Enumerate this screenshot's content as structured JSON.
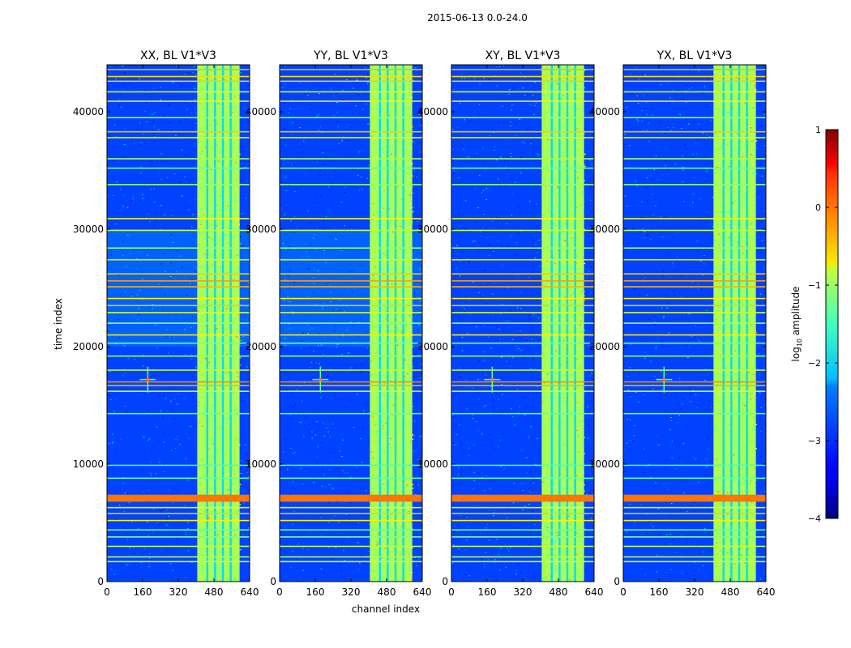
{
  "figure": {
    "suptitle": "2015-06-13 0.0-24.0",
    "xlabel": "channel index",
    "ylabel": "time index",
    "colorbar_label": "log",
    "colorbar_label_sub": "10",
    "colorbar_label_rest": " amplitude"
  },
  "chart_data": {
    "type": "heatmap",
    "panels": [
      {
        "title": "XX, BL V1*V3",
        "polarization": "XX"
      },
      {
        "title": "YY, BL V1*V3",
        "polarization": "YY"
      },
      {
        "title": "XY, BL V1*V3",
        "polarization": "XY"
      },
      {
        "title": "YX, BL V1*V3",
        "polarization": "YX"
      }
    ],
    "x_range": [
      0,
      640
    ],
    "y_range": [
      0,
      44000
    ],
    "x_ticks": [
      0,
      160,
      320,
      480,
      640
    ],
    "y_ticks": [
      0,
      10000,
      20000,
      30000,
      40000
    ],
    "colorbar_range": [
      -4,
      1
    ],
    "colorbar_ticks": [
      1,
      0,
      -1,
      -2,
      -3,
      -4
    ],
    "colormap": "jet",
    "features": {
      "bright_channel_band": [
        405,
        595
      ],
      "bright_channel_gaps": [
        450,
        485,
        520,
        555
      ],
      "full_rfi_band_time": [
        6800,
        7400
      ],
      "spike": {
        "channel": 183,
        "time": 17200
      }
    },
    "horizontal_lines": [
      {
        "time": 1700,
        "level": -1.0
      },
      {
        "time": 2100,
        "level": -1.3
      },
      {
        "time": 3000,
        "level": -1.2
      },
      {
        "time": 3800,
        "level": -1.5
      },
      {
        "time": 4400,
        "level": -1.6
      },
      {
        "time": 5200,
        "level": -0.8
      },
      {
        "time": 5800,
        "level": -0.6
      },
      {
        "time": 6300,
        "level": -0.9
      },
      {
        "time": 8800,
        "level": -1.6
      },
      {
        "time": 9900,
        "level": -1.8
      },
      {
        "time": 14300,
        "level": -1.6
      },
      {
        "time": 16200,
        "level": -1.0
      },
      {
        "time": 16700,
        "level": -0.5
      },
      {
        "time": 17000,
        "level": -0.3
      },
      {
        "time": 18000,
        "level": -1.2
      },
      {
        "time": 19200,
        "level": -1.4
      },
      {
        "time": 20300,
        "level": -1.5
      },
      {
        "time": 21000,
        "level": -0.8
      },
      {
        "time": 22000,
        "level": -1.3
      },
      {
        "time": 22900,
        "level": -1.1
      },
      {
        "time": 23500,
        "level": -0.6
      },
      {
        "time": 24100,
        "level": -0.8
      },
      {
        "time": 25100,
        "level": -0.5
      },
      {
        "time": 25600,
        "level": -0.4
      },
      {
        "time": 26200,
        "level": -0.6
      },
      {
        "time": 27400,
        "level": -0.8
      },
      {
        "time": 28400,
        "level": -1.4
      },
      {
        "time": 29900,
        "level": -1.2
      },
      {
        "time": 30900,
        "level": -1.0
      },
      {
        "time": 33800,
        "level": -1.4
      },
      {
        "time": 35200,
        "level": -1.6
      },
      {
        "time": 36000,
        "level": -1.3
      },
      {
        "time": 37800,
        "level": -0.9
      },
      {
        "time": 38300,
        "level": -0.6
      },
      {
        "time": 39500,
        "level": -1.3
      },
      {
        "time": 40900,
        "level": -0.8
      },
      {
        "time": 41700,
        "level": -1.0
      },
      {
        "time": 42600,
        "level": -0.6
      },
      {
        "time": 43000,
        "level": -0.7
      },
      {
        "time": 43600,
        "level": -0.5
      }
    ]
  },
  "colors": {
    "background": "#ffffff",
    "text": "#000000"
  }
}
